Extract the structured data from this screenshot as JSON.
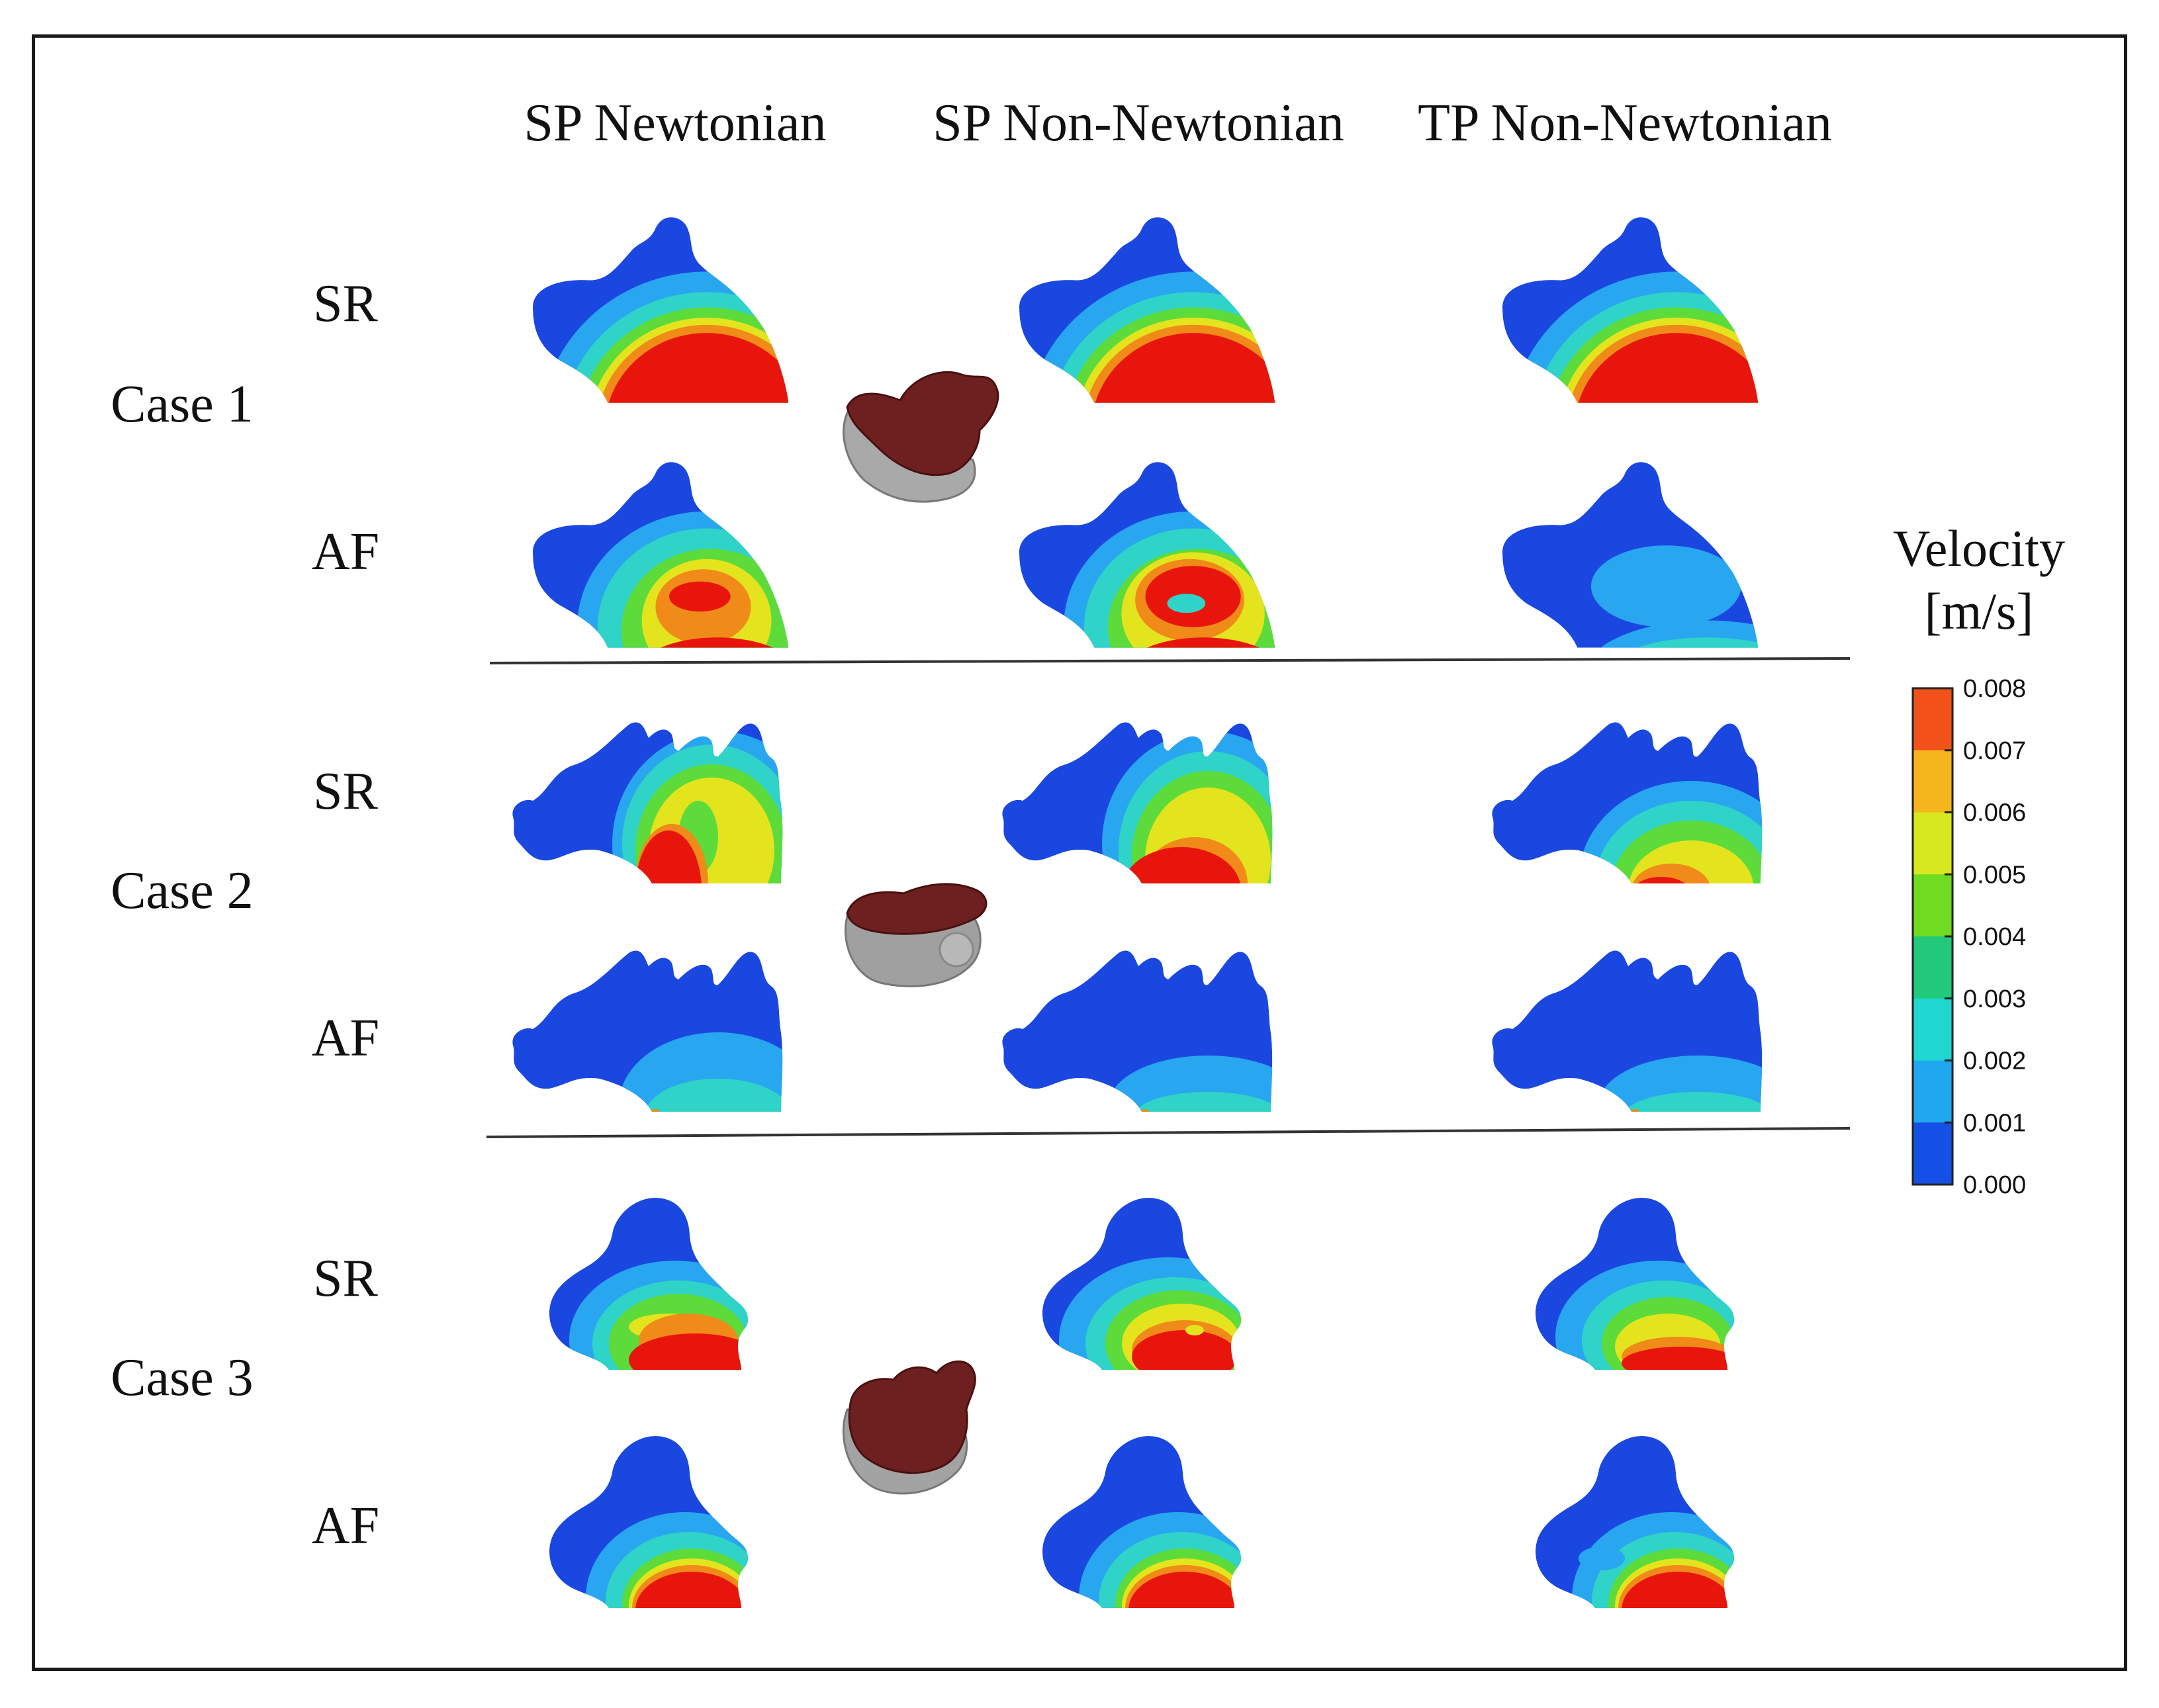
{
  "columns": [
    "SP Newtonian",
    "SP Non-Newtonian",
    "TP Non-Newtonian"
  ],
  "cases": [
    {
      "label": "Case 1",
      "rows": [
        "SR",
        "AF"
      ]
    },
    {
      "label": "Case 2",
      "rows": [
        "SR",
        "AF"
      ]
    },
    {
      "label": "Case 3",
      "rows": [
        "SR",
        "AF"
      ]
    }
  ],
  "colorbar": {
    "title_line1": "Velocity",
    "title_line2": "[m/s]",
    "ticks": [
      "0.008",
      "0.007",
      "0.006",
      "0.005",
      "0.004",
      "0.003",
      "0.002",
      "0.001",
      "0.000"
    ],
    "colors": [
      "#f2521a",
      "#f5b51c",
      "#d8e81e",
      "#6fdc22",
      "#22c97a",
      "#1fd6d0",
      "#20a8ee",
      "#1550e6"
    ]
  },
  "palette": {
    "low": "#1a47e0",
    "mid_low": "#28a6ef",
    "mid": "#2fd3c8",
    "mid_high": "#5ddb3a",
    "high_mid": "#e4e41e",
    "high": "#f08a18",
    "max": "#e8150c",
    "model_red": "#6e2020",
    "model_gray": "#a8a8a8"
  }
}
